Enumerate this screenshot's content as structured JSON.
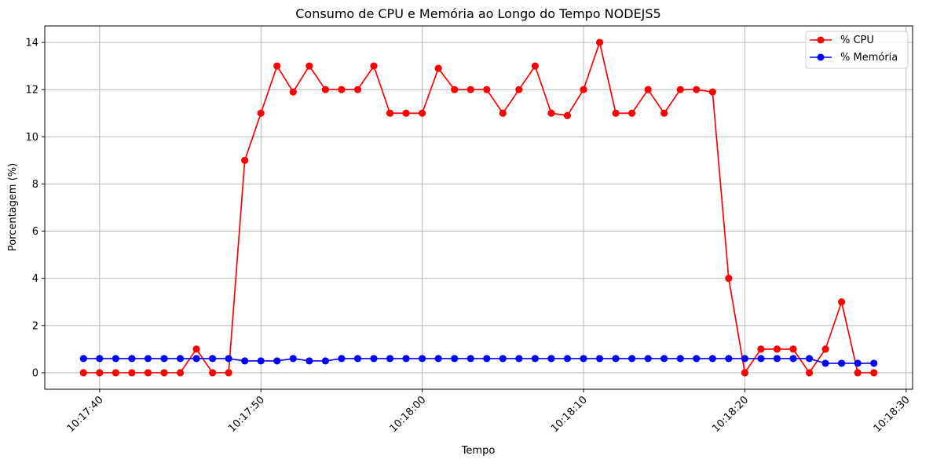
{
  "chart_data": {
    "type": "line",
    "title": "Consumo de CPU e Memória ao Longo do Tempo NODEJS5",
    "xlabel": "Tempo",
    "ylabel": "Porcentagem (%)",
    "x": [
      "10:17:39",
      "10:17:40",
      "10:17:41",
      "10:17:42",
      "10:17:43",
      "10:17:44",
      "10:17:45",
      "10:17:46",
      "10:17:47",
      "10:17:48",
      "10:17:49",
      "10:17:50",
      "10:17:51",
      "10:17:52",
      "10:17:53",
      "10:17:54",
      "10:17:55",
      "10:17:56",
      "10:17:57",
      "10:17:58",
      "10:17:59",
      "10:18:00",
      "10:18:01",
      "10:18:02",
      "10:18:03",
      "10:18:04",
      "10:18:05",
      "10:18:06",
      "10:18:07",
      "10:18:08",
      "10:18:09",
      "10:18:10",
      "10:18:11",
      "10:18:12",
      "10:18:13",
      "10:18:14",
      "10:18:15",
      "10:18:16",
      "10:18:17",
      "10:18:18",
      "10:18:19",
      "10:18:20",
      "10:18:21",
      "10:18:22",
      "10:18:23",
      "10:18:24",
      "10:18:25",
      "10:18:26",
      "10:18:27",
      "10:18:28"
    ],
    "series": [
      {
        "name": "% CPU",
        "color": "#ff0000",
        "values": [
          0,
          0,
          0,
          0,
          0,
          0,
          0,
          1,
          0,
          0,
          9,
          11,
          13,
          11.9,
          13,
          12,
          12,
          12,
          13,
          11,
          11,
          11,
          12.9,
          12,
          12,
          12,
          11,
          12,
          13,
          11,
          10.9,
          12,
          14,
          11,
          11,
          12,
          11,
          12,
          12,
          11.9,
          4,
          0,
          1,
          1,
          1,
          0,
          1,
          3,
          0,
          0
        ]
      },
      {
        "name": "% Memória",
        "color": "#0000ff",
        "values": [
          0.6,
          0.6,
          0.6,
          0.6,
          0.6,
          0.6,
          0.6,
          0.6,
          0.6,
          0.6,
          0.5,
          0.5,
          0.5,
          0.6,
          0.5,
          0.5,
          0.6,
          0.6,
          0.6,
          0.6,
          0.6,
          0.6,
          0.6,
          0.6,
          0.6,
          0.6,
          0.6,
          0.6,
          0.6,
          0.6,
          0.6,
          0.6,
          0.6,
          0.6,
          0.6,
          0.6,
          0.6,
          0.6,
          0.6,
          0.6,
          0.6,
          0.6,
          0.6,
          0.6,
          0.6,
          0.6,
          0.4,
          0.4,
          0.4,
          0.4
        ]
      }
    ],
    "xticks": [
      "10:17:40",
      "10:17:50",
      "10:18:00",
      "10:18:10",
      "10:18:20",
      "10:18:30"
    ],
    "yticks": [
      "0",
      "2",
      "4",
      "6",
      "8",
      "10",
      "12",
      "14"
    ],
    "xlim": [
      "10:17:36.6",
      "10:18:30.4"
    ],
    "ylim": [
      -0.7,
      14.7
    ],
    "grid": true,
    "legend_position": "top-right"
  }
}
